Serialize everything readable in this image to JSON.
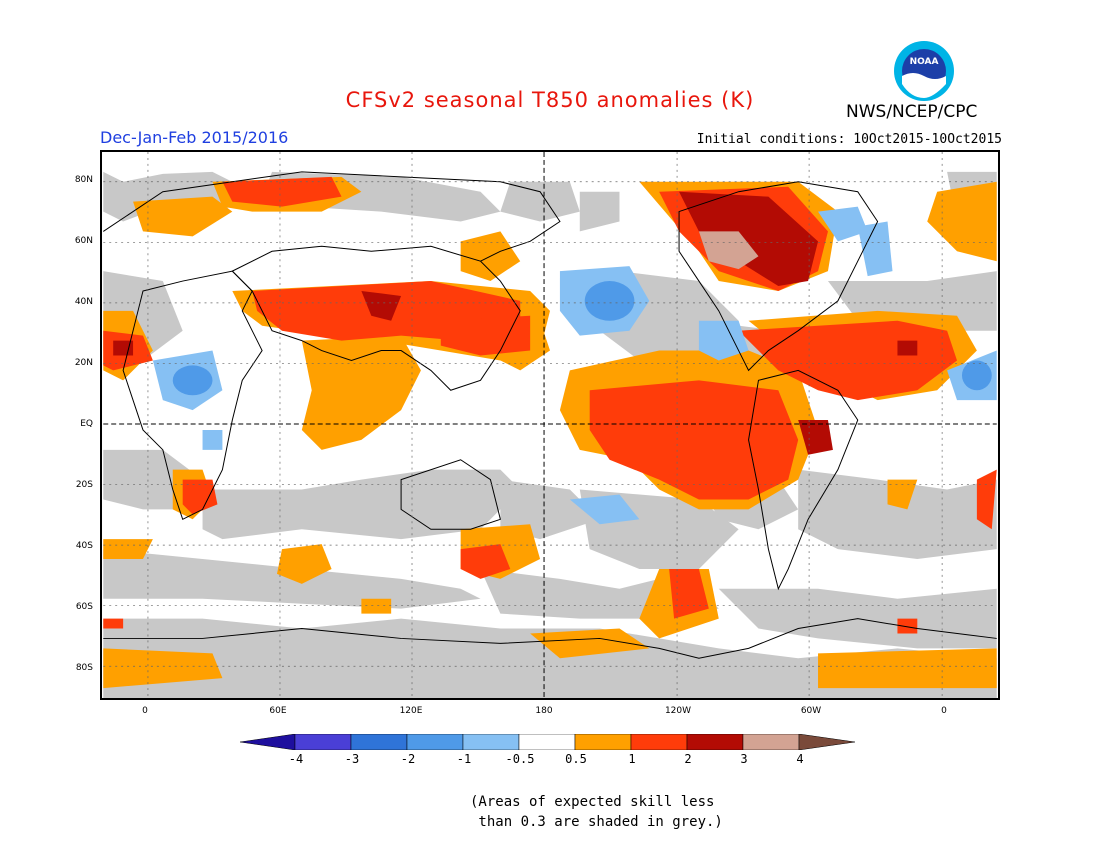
{
  "header": {
    "title": "CFSv2 seasonal T850 anomalies (K)",
    "org": "NWS/NCEP/CPC",
    "season": "Dec-Jan-Feb 2015/2016",
    "initial_conditions": "Initial conditions: 10Oct2015-10Oct2015",
    "logo_text": "NOAA"
  },
  "map": {
    "lat_labels": [
      "80N",
      "60N",
      "40N",
      "20N",
      "EQ",
      "20S",
      "40S",
      "60S",
      "80S"
    ],
    "lon_labels": [
      "0",
      "60E",
      "120E",
      "180",
      "120W",
      "60W",
      "0"
    ]
  },
  "colorbar": {
    "labels": [
      "-4",
      "-3",
      "-2",
      "-1",
      "-0.5",
      "0.5",
      "1",
      "2",
      "3",
      "4"
    ],
    "colors": [
      "#1e0f9e",
      "#4a3fd6",
      "#2f74d8",
      "#4f9ae8",
      "#86c0f3",
      "#ffffff",
      "#ffa000",
      "#ff3c0a",
      "#b30b04",
      "#d3a393",
      "#7a4a3a"
    ]
  },
  "note": {
    "line1": "(Areas of expected skill less",
    "line2": " than 0.3 are shaded in grey.)"
  },
  "colors": {
    "grey": "#c8c8c8",
    "orange": "#ffa000",
    "red": "#ff3c0a",
    "darkred": "#b30b04",
    "pink": "#d3a393",
    "lightblue": "#86c0f3",
    "blue": "#4f9ae8"
  }
}
